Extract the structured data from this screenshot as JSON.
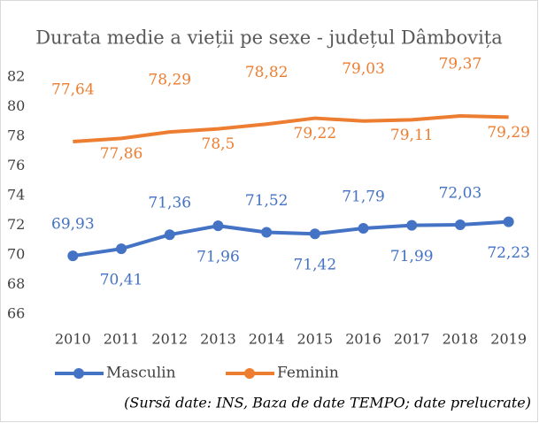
{
  "chart_data": {
    "type": "line",
    "title": "Durata medie a vieții pe sexe - județul Dâmbovița",
    "note": "(Sursă date: INS, Baza de date TEMPO; date prelucrate)",
    "categories": [
      "2010",
      "2011",
      "2012",
      "2013",
      "2014",
      "2015",
      "2016",
      "2017",
      "2018",
      "2019"
    ],
    "series": [
      {
        "name": "Masculin",
        "color": "#4472c4",
        "markers": true,
        "values": [
          69.93,
          70.41,
          71.36,
          71.96,
          71.52,
          71.42,
          71.79,
          71.99,
          72.03,
          72.23
        ],
        "value_labels": [
          "69,93",
          "70,41",
          "71,36",
          "71,96",
          "71,52",
          "71,42",
          "71,79",
          "71,99",
          "72,03",
          "72,23"
        ]
      },
      {
        "name": "Feminin",
        "color": "#ed7d31",
        "markers": false,
        "values": [
          77.64,
          77.86,
          78.29,
          78.5,
          78.82,
          79.22,
          79.03,
          79.11,
          79.37,
          79.29
        ],
        "value_labels": [
          "77,64",
          "77,86",
          "78,29",
          "78,5",
          "78,82",
          "79,22",
          "79,03",
          "79,11",
          "79,37",
          "79,29"
        ]
      }
    ],
    "ylim": [
      66,
      82
    ],
    "yticks": [
      66,
      68,
      70,
      72,
      74,
      76,
      78,
      80,
      82
    ],
    "grid": false,
    "legend": "bottom"
  }
}
